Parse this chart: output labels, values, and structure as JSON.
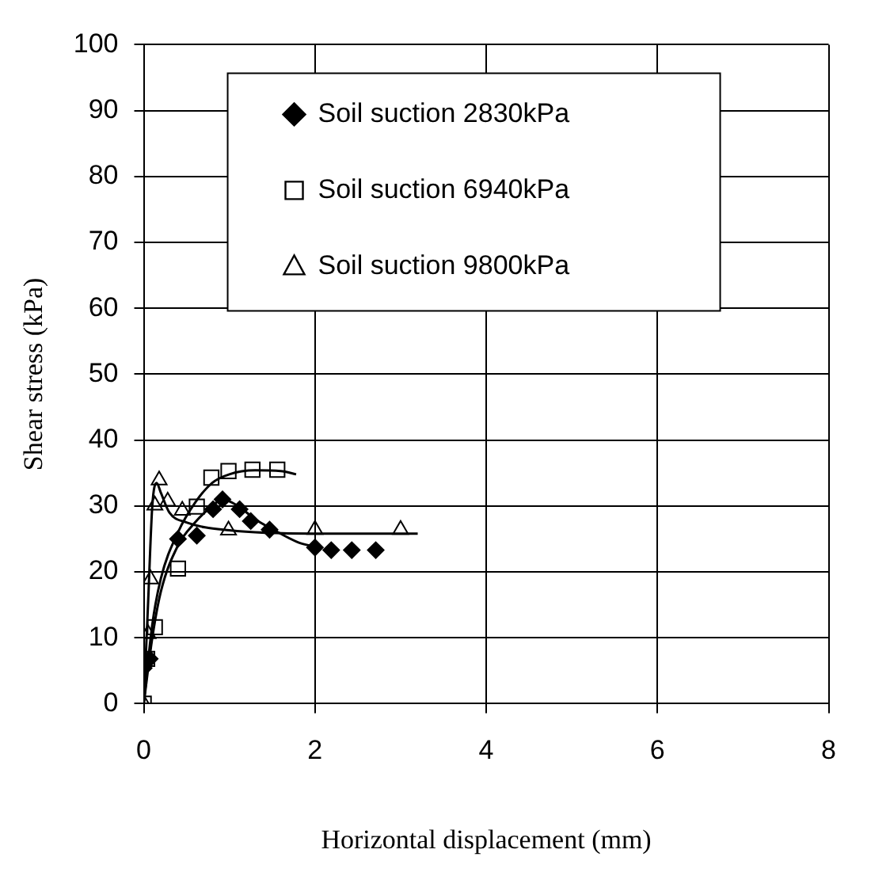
{
  "chart_data": {
    "type": "scatter",
    "xlabel": "Horizontal displacement (mm)",
    "ylabel": "Shear stress (kPa)",
    "xlim": [
      0,
      8
    ],
    "xticks": [
      0,
      2,
      4,
      6,
      8
    ],
    "ylim": [
      0,
      100
    ],
    "yticks": [
      0,
      10,
      20,
      30,
      40,
      50,
      60,
      70,
      80,
      90,
      100
    ],
    "grid": true,
    "legend": "top",
    "series": [
      {
        "name": "Soil suction 2830kPa",
        "color": "#000000",
        "marker": "diamond",
        "x": [
          0,
          0.07,
          0.4,
          0.62,
          0.81,
          0.92,
          1.12,
          1.25,
          1.47,
          2.0,
          2.19,
          2.43,
          2.71
        ],
        "values": [
          5.4,
          6.8,
          25,
          25.5,
          29.5,
          31,
          29.5,
          27.7,
          26.4,
          23.7,
          23.3,
          23.3,
          23.3
        ]
      },
      {
        "name": "Soil suction 6940kPa",
        "color": "#000000",
        "marker": "square",
        "x": [
          0,
          0.04,
          0.13,
          0.4,
          0.62,
          0.79,
          0.99,
          1.27,
          1.56
        ],
        "values": [
          0,
          6.8,
          11.6,
          20.5,
          29.9,
          34.3,
          35.3,
          35.5,
          35.5
        ]
      },
      {
        "name": "Soil suction 9800kPa",
        "color": "#000000",
        "marker": "triangle",
        "x": [
          0,
          0.05,
          0.08,
          0.13,
          0.18,
          0.28,
          0.45,
          0.99,
          2.0,
          3.0
        ],
        "values": [
          0,
          10.6,
          18.9,
          30.1,
          33.9,
          30.7,
          29.3,
          26.3,
          26.4,
          26.4
        ]
      },
      {
        "type": "line",
        "color": "#000000",
        "marker": "none",
        "x": [
          0,
          0.1,
          0.2,
          0.4,
          0.6,
          0.8,
          0.92,
          1.1,
          1.3,
          1.5,
          1.8,
          2.0
        ],
        "values": [
          0,
          10,
          17,
          24,
          27.5,
          30,
          31,
          30,
          28,
          26.5,
          24.5,
          23.8
        ]
      },
      {
        "type": "line",
        "color": "#000000",
        "marker": "none",
        "x": [
          0,
          0.1,
          0.2,
          0.4,
          0.6,
          0.8,
          1.0,
          1.3,
          1.6,
          1.78
        ],
        "values": [
          0,
          12,
          19,
          26,
          30.5,
          33.5,
          34.8,
          35.4,
          35.3,
          34.8
        ]
      },
      {
        "type": "line",
        "color": "#000000",
        "marker": "none",
        "x": [
          0,
          0.05,
          0.1,
          0.15,
          0.2,
          0.3,
          0.5,
          1.0,
          2.0,
          3.2
        ],
        "values": [
          0,
          15,
          30,
          33.5,
          32,
          29,
          27.5,
          26.3,
          25.8,
          25.8
        ]
      }
    ]
  }
}
